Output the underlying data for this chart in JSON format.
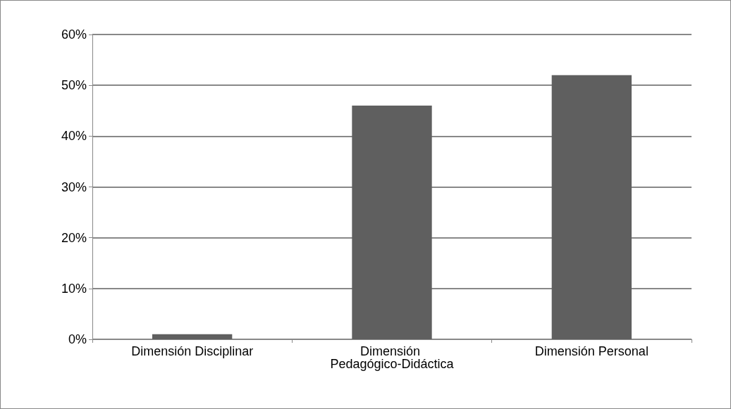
{
  "chart_data": {
    "type": "bar",
    "categories": [
      "Dimensión Disciplinar",
      "Dimensión Pedagógico-Didáctica",
      "Dimensión Personal"
    ],
    "values": [
      1,
      46,
      52
    ],
    "color": "#5f5f5f",
    "ylim": [
      0,
      60
    ],
    "yticks": [
      {
        "value": 0,
        "label": "0%"
      },
      {
        "value": 10,
        "label": "10%"
      },
      {
        "value": 20,
        "label": "20%"
      },
      {
        "value": 30,
        "label": "30%"
      },
      {
        "value": 40,
        "label": "40%"
      },
      {
        "value": 50,
        "label": "50%"
      },
      {
        "value": 60,
        "label": "60%"
      }
    ],
    "grid": "y"
  }
}
